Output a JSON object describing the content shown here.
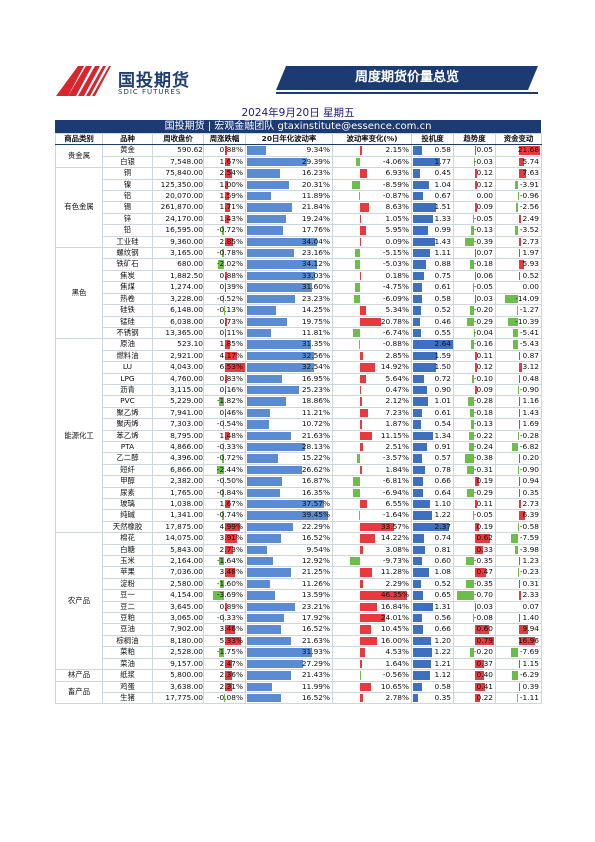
{
  "brand": {
    "name_cn": "国投期货",
    "name_en": "SDIC FUTURES"
  },
  "banner": "周度期货价量总览",
  "date": "2024年9月20日 星期五",
  "team": "国投期货 | 宏观金融团队  gtaxinstitute@essence.com.cn",
  "headers": [
    "商品类别",
    "品种",
    "周收盘价",
    "周涨跌幅",
    "20日年化波动率",
    "波动率变化(%)",
    "投机度",
    "趋势度",
    "资金变动"
  ],
  "colors": {
    "up": "#e8393f",
    "down": "#6dbd4a",
    "vol": "#5b8bd2",
    "header": "#1d3b73"
  },
  "groups": [
    {
      "category": "贵金属",
      "rows": [
        {
          "name": "黄金",
          "close": "590.62",
          "chg": "0.88%",
          "vol": "9.34%",
          "vc": "2.15%",
          "spec": "0.58",
          "trend": "0.05",
          "cap": "21.68"
        },
        {
          "name": "白银",
          "close": "7,548.00",
          "chg": "1.67%",
          "vol": "29.39%",
          "vc": "-4.06%",
          "spec": "1.77",
          "trend": "-0.03",
          "cap": "5.74"
        }
      ]
    },
    {
      "category": "有色金属",
      "rows": [
        {
          "name": "铜",
          "close": "75,840.00",
          "chg": "2.54%",
          "vol": "16.23%",
          "vc": "6.93%",
          "spec": "0.45",
          "trend": "0.12",
          "cap": "7.63"
        },
        {
          "name": "镍",
          "close": "125,350.00",
          "chg": "1.00%",
          "vol": "20.31%",
          "vc": "-8.59%",
          "spec": "1.04",
          "trend": "0.12",
          "cap": "-3.91"
        },
        {
          "name": "铝",
          "close": "20,070.00",
          "chg": "1.59%",
          "vol": "11.89%",
          "vc": "-0.87%",
          "spec": "0.67",
          "trend": "0.00",
          "cap": "-0.96"
        },
        {
          "name": "锡",
          "close": "261,870.00",
          "chg": "1.71%",
          "vol": "21.84%",
          "vc": "8.63%",
          "spec": "1.51",
          "trend": "0.09",
          "cap": "-2.56"
        },
        {
          "name": "锌",
          "close": "24,170.00",
          "chg": "1.43%",
          "vol": "19.24%",
          "vc": "1.05%",
          "spec": "1.33",
          "trend": "-0.05",
          "cap": "2.49"
        },
        {
          "name": "铅",
          "close": "16,595.00",
          "chg": "-0.72%",
          "vol": "17.76%",
          "vc": "5.95%",
          "spec": "0.99",
          "trend": "-0.13",
          "cap": "-3.52"
        },
        {
          "name": "工业硅",
          "close": "9,360.00",
          "chg": "2.85%",
          "vol": "34.04%",
          "vc": "0.09%",
          "spec": "1.43",
          "trend": "-0.39",
          "cap": "2.73"
        }
      ]
    },
    {
      "category": "黑色",
      "rows": [
        {
          "name": "螺纹钢",
          "close": "3,165.00",
          "chg": "-0.78%",
          "vol": "23.16%",
          "vc": "-5.15%",
          "spec": "1.11",
          "trend": "0.07",
          "cap": "1.97"
        },
        {
          "name": "铁矿石",
          "close": "680.00",
          "chg": "-2.02%",
          "vol": "34.12%",
          "vc": "-5.03%",
          "spec": "0.88",
          "trend": "-0.18",
          "cap": "5.93"
        },
        {
          "name": "焦炭",
          "close": "1,882.50",
          "chg": "0.88%",
          "vol": "33.03%",
          "vc": "0.18%",
          "spec": "0.75",
          "trend": "0.06",
          "cap": "0.52"
        },
        {
          "name": "焦煤",
          "close": "1,274.00",
          "chg": "0.39%",
          "vol": "31.60%",
          "vc": "-4.75%",
          "spec": "0.61",
          "trend": "-0.05",
          "cap": "0.00"
        },
        {
          "name": "热卷",
          "close": "3,228.00",
          "chg": "-0.52%",
          "vol": "23.23%",
          "vc": "-6.09%",
          "spec": "0.58",
          "trend": "0.03",
          "cap": "-14.09"
        },
        {
          "name": "硅铁",
          "close": "6,148.00",
          "chg": "-0.13%",
          "vol": "14.25%",
          "vc": "5.34%",
          "spec": "0.52",
          "trend": "-0.20",
          "cap": "-1.27"
        },
        {
          "name": "锰硅",
          "close": "6,038.00",
          "chg": "0.73%",
          "vol": "19.75%",
          "vc": "20.78%",
          "spec": "0.46",
          "trend": "-0.29",
          "cap": "-10.39"
        },
        {
          "name": "不锈钢",
          "close": "13,365.00",
          "chg": "0.11%",
          "vol": "11.81%",
          "vc": "-6.74%",
          "spec": "0.55",
          "trend": "-0.04",
          "cap": "-5.41"
        }
      ]
    },
    {
      "category": "能源化工",
      "rows": [
        {
          "name": "原油",
          "close": "523.10",
          "chg": "1.85%",
          "vol": "31.35%",
          "vc": "-0.88%",
          "spec": "2.64",
          "trend": "-0.16",
          "cap": "-5.43"
        },
        {
          "name": "燃料油",
          "close": "2,921.00",
          "chg": "4.17%",
          "vol": "32.56%",
          "vc": "2.85%",
          "spec": "1.59",
          "trend": "0.11",
          "cap": "0.87"
        },
        {
          "name": "LU",
          "close": "4,043.00",
          "chg": "6.53%",
          "vol": "32.54%",
          "vc": "14.92%",
          "spec": "1.50",
          "trend": "0.12",
          "cap": "3.12"
        },
        {
          "name": "LPG",
          "close": "4,760.00",
          "chg": "0.83%",
          "vol": "16.95%",
          "vc": "5.64%",
          "spec": "0.72",
          "trend": "-0.10",
          "cap": "0.48"
        },
        {
          "name": "沥青",
          "close": "3,115.00",
          "chg": "0.16%",
          "vol": "25.23%",
          "vc": "0.47%",
          "spec": "0.90",
          "trend": "0.09",
          "cap": "-0.90"
        },
        {
          "name": "PVC",
          "close": "5,229.00",
          "chg": "-1.82%",
          "vol": "18.86%",
          "vc": "2.12%",
          "spec": "1.01",
          "trend": "-0.28",
          "cap": "1.16"
        },
        {
          "name": "聚乙烯",
          "close": "7,941.00",
          "chg": "0.46%",
          "vol": "11.21%",
          "vc": "7.23%",
          "spec": "0.61",
          "trend": "-0.18",
          "cap": "1.43"
        },
        {
          "name": "聚丙烯",
          "close": "7,303.00",
          "chg": "-0.54%",
          "vol": "10.72%",
          "vc": "1.87%",
          "spec": "0.54",
          "trend": "-0.13",
          "cap": "1.69"
        },
        {
          "name": "苯乙烯",
          "close": "8,795.00",
          "chg": "1.48%",
          "vol": "21.63%",
          "vc": "11.15%",
          "spec": "1.34",
          "trend": "-0.22",
          "cap": "-0.28"
        },
        {
          "name": "PTA",
          "close": "4,866.00",
          "chg": "-0.33%",
          "vol": "28.13%",
          "vc": "2.51%",
          "spec": "0.91",
          "trend": "-0.24",
          "cap": "-6.82"
        },
        {
          "name": "乙二醇",
          "close": "4,396.00",
          "chg": "-0.72%",
          "vol": "15.22%",
          "vc": "-3.57%",
          "spec": "0.57",
          "trend": "-0.38",
          "cap": "0.20"
        },
        {
          "name": "短纤",
          "close": "6,866.00",
          "chg": "-2.44%",
          "vol": "26.62%",
          "vc": "1.84%",
          "spec": "0.78",
          "trend": "-0.31",
          "cap": "-0.90"
        },
        {
          "name": "甲醇",
          "close": "2,382.00",
          "chg": "-0.50%",
          "vol": "16.87%",
          "vc": "-6.81%",
          "spec": "0.66",
          "trend": "0.19",
          "cap": "0.94"
        },
        {
          "name": "尿素",
          "close": "1,765.00",
          "chg": "-0.84%",
          "vol": "16.35%",
          "vc": "-6.94%",
          "spec": "0.64",
          "trend": "-0.29",
          "cap": "0.35"
        },
        {
          "name": "玻璃",
          "close": "1,038.00",
          "chg": "1.67%",
          "vol": "37.57%",
          "vc": "6.55%",
          "spec": "1.10",
          "trend": "0.11",
          "cap": "2.73"
        },
        {
          "name": "纯碱",
          "close": "1,341.00",
          "chg": "-0.74%",
          "vol": "39.45%",
          "vc": "-1.64%",
          "spec": "1.22",
          "trend": "-0.05",
          "cap": "6.39"
        },
        {
          "name": "天然橡胶",
          "close": "17,875.00",
          "chg": "4.99%",
          "vol": "22.29%",
          "vc": "33.57%",
          "spec": "2.37",
          "trend": "0.19",
          "cap": "-0.58"
        }
      ]
    },
    {
      "category": "农产品",
      "rows": [
        {
          "name": "棉花",
          "close": "14,075.00",
          "chg": "3.91%",
          "vol": "16.52%",
          "vc": "14.22%",
          "spec": "0.74",
          "trend": "0.62",
          "cap": "-7.59"
        },
        {
          "name": "白糖",
          "close": "5,843.00",
          "chg": "2.73%",
          "vol": "9.54%",
          "vc": "3.08%",
          "spec": "0.81",
          "trend": "0.33",
          "cap": "-3.98"
        },
        {
          "name": "玉米",
          "close": "2,164.00",
          "chg": "-1.64%",
          "vol": "12.92%",
          "vc": "-9.73%",
          "spec": "0.60",
          "trend": "-0.35",
          "cap": "1.23"
        },
        {
          "name": "苹果",
          "close": "7,036.00",
          "chg": "3.48%",
          "vol": "21.25%",
          "vc": "11.28%",
          "spec": "1.08",
          "trend": "0.47",
          "cap": "-0.23"
        },
        {
          "name": "淀粉",
          "close": "2,580.00",
          "chg": "-1.60%",
          "vol": "11.26%",
          "vc": "2.29%",
          "spec": "0.52",
          "trend": "-0.35",
          "cap": "0.31"
        },
        {
          "name": "豆一",
          "close": "4,154.00",
          "chg": "-3.69%",
          "vol": "13.59%",
          "vc": "46.35%",
          "spec": "0.65",
          "trend": "-0.70",
          "cap": "2.33"
        },
        {
          "name": "豆二",
          "close": "3,645.00",
          "chg": "0.89%",
          "vol": "23.21%",
          "vc": "16.84%",
          "spec": "1.31",
          "trend": "0.03",
          "cap": "0.07"
        },
        {
          "name": "豆粕",
          "close": "3,065.00",
          "chg": "-0.33%",
          "vol": "17.92%",
          "vc": "24.01%",
          "spec": "0.56",
          "trend": "-0.08",
          "cap": "1.40"
        },
        {
          "name": "豆油",
          "close": "7,902.00",
          "chg": "3.46%",
          "vol": "16.52%",
          "vc": "10.45%",
          "spec": "0.66",
          "trend": "0.60",
          "cap": "9.94"
        },
        {
          "name": "棕榈油",
          "close": "8,180.00",
          "chg": "5.33%",
          "vol": "21.63%",
          "vc": "16.00%",
          "spec": "1.20",
          "trend": "0.79",
          "cap": "16.96"
        },
        {
          "name": "菜粕",
          "close": "2,528.00",
          "chg": "-1.75%",
          "vol": "31.93%",
          "vc": "4.53%",
          "spec": "1.22",
          "trend": "-0.20",
          "cap": "-7.69"
        },
        {
          "name": "菜油",
          "close": "9,157.00",
          "chg": "2.47%",
          "vol": "27.29%",
          "vc": "1.64%",
          "spec": "1.21",
          "trend": "0.37",
          "cap": "1.15"
        }
      ]
    },
    {
      "category": "林产品",
      "rows": [
        {
          "name": "纸浆",
          "close": "5,800.00",
          "chg": "2.36%",
          "vol": "21.43%",
          "vc": "-0.56%",
          "spec": "1.12",
          "trend": "0.40",
          "cap": "-6.29"
        }
      ]
    },
    {
      "category": "畜产品",
      "rows": [
        {
          "name": "鸡蛋",
          "close": "3,638.00",
          "chg": "2.31%",
          "vol": "11.99%",
          "vc": "10.65%",
          "spec": "0.58",
          "trend": "0.41",
          "cap": "0.39"
        },
        {
          "name": "生猪",
          "close": "17,775.00",
          "chg": "-0.08%",
          "vol": "16.52%",
          "vc": "2.78%",
          "spec": "0.35",
          "trend": "0.22",
          "cap": "-1.11"
        }
      ]
    }
  ]
}
